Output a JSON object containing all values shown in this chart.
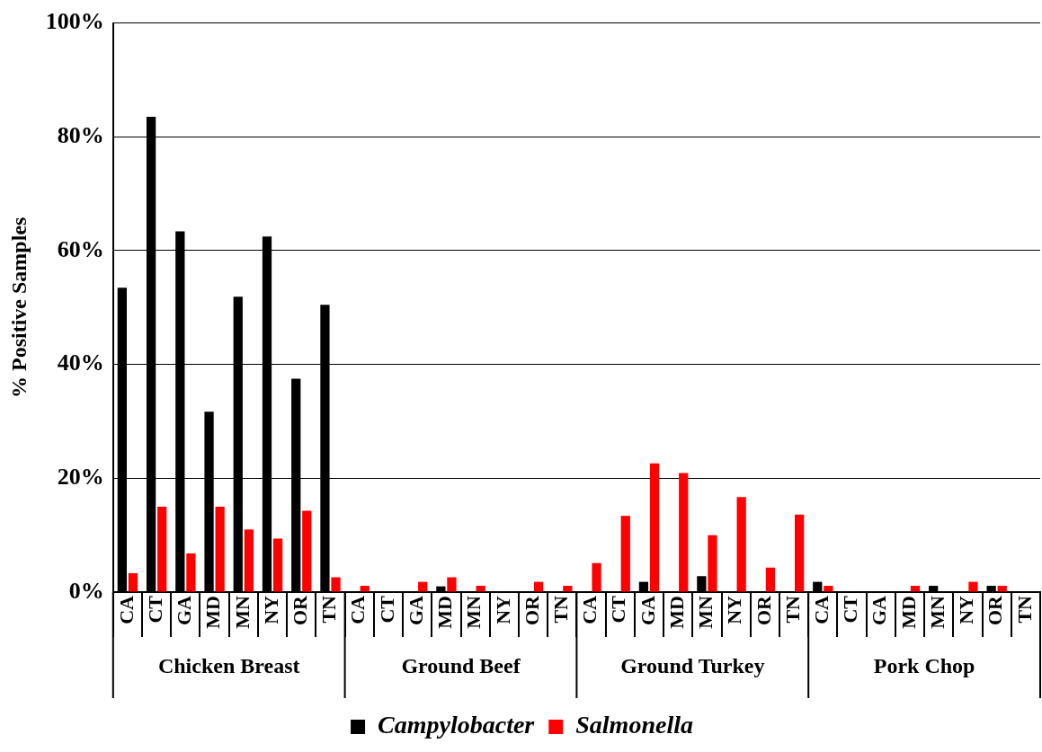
{
  "chart_data": {
    "type": "bar",
    "ylabel": "% Positive Samples",
    "categories": [
      "CA",
      "CT",
      "GA",
      "MD",
      "MN",
      "NY",
      "OR",
      "TN",
      "CA",
      "CT",
      "GA",
      "MD",
      "MN",
      "NY",
      "OR",
      "TN",
      "CA",
      "CT",
      "GA",
      "MD",
      "MN",
      "NY",
      "OR",
      "TN",
      "CA",
      "CT",
      "GA",
      "MD",
      "MN",
      "NY",
      "OR",
      "TN"
    ],
    "series": [
      {
        "name": "Campylobacter",
        "color": "#000000",
        "values": [
          53.5,
          83.5,
          63.4,
          31.7,
          51.9,
          62.5,
          37.5,
          50.5,
          0,
          0,
          0,
          1.0,
          0,
          0,
          0,
          0,
          0,
          0,
          1.8,
          0,
          2.8,
          0,
          0,
          0,
          1.8,
          0,
          0,
          0,
          1.1,
          0,
          1.1,
          0
        ]
      },
      {
        "name": "Salmonella",
        "color": "#ff0000",
        "values": [
          3.3,
          15.0,
          6.8,
          15.0,
          11.0,
          9.4,
          14.3,
          2.6,
          1.1,
          0,
          1.8,
          2.6,
          1.1,
          0,
          1.8,
          1.1,
          5.1,
          13.4,
          22.6,
          20.9,
          10.0,
          16.7,
          4.3,
          13.6,
          1.1,
          0,
          0,
          1.1,
          0,
          1.8,
          1.1,
          0
        ]
      }
    ],
    "annotations": [
      "Chicken Breast",
      "Ground Beef",
      "Ground Turkey",
      "Pork Chop"
    ],
    "ylim": [
      0,
      100
    ],
    "yticks": [
      {
        "value": 0,
        "label": "0%"
      },
      {
        "value": 20,
        "label": "20%"
      },
      {
        "value": 40,
        "label": "40%"
      },
      {
        "value": 60,
        "label": "60%"
      },
      {
        "value": 80,
        "label": "80%"
      },
      {
        "value": 100,
        "label": "100%"
      }
    ],
    "grid": "y",
    "legend": "bottom"
  }
}
